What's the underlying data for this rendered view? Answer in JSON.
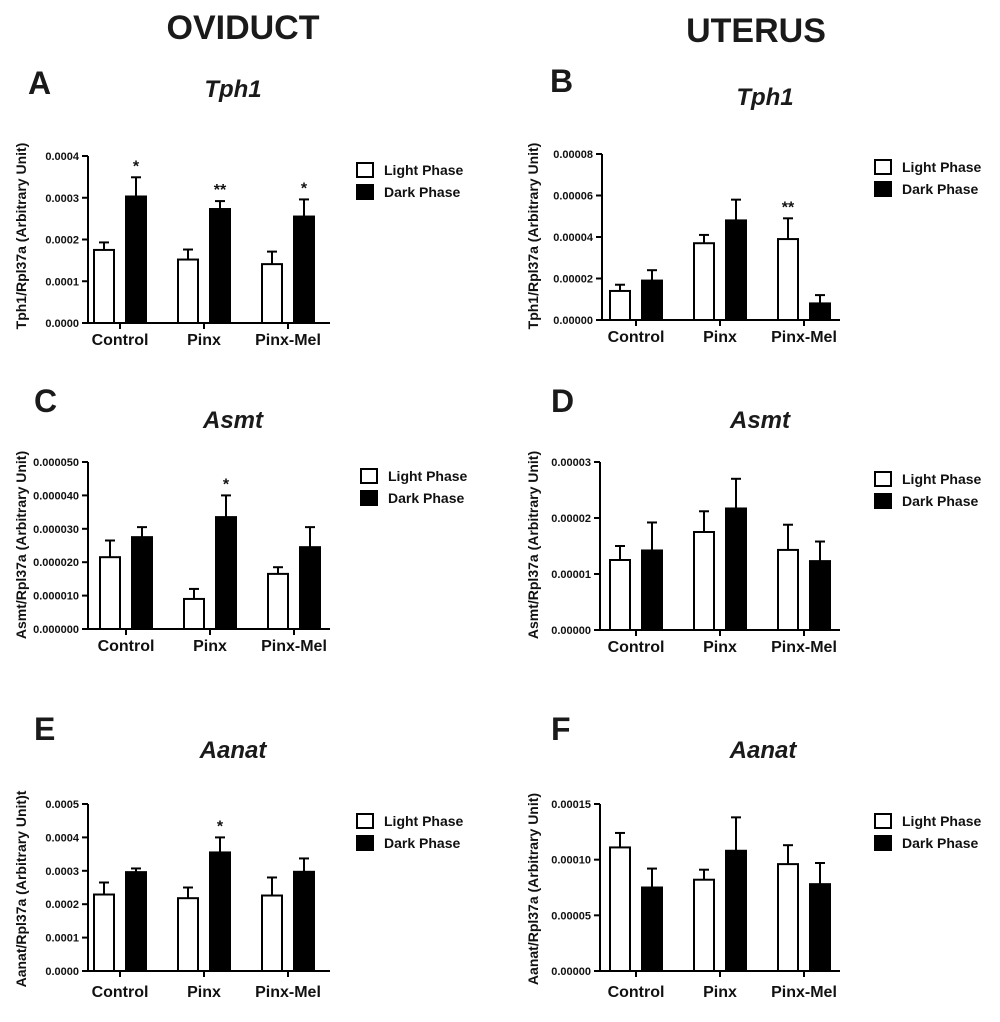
{
  "titles": {
    "left": "OVIDUCT",
    "right": "UTERUS"
  },
  "legend": {
    "light": "Light Phase",
    "dark": "Dark Phase"
  },
  "chart_data": [
    {
      "panel": "A",
      "type": "bar",
      "title": "Tph1",
      "ylabel": "Tph1/Rpl37a (Arbitrary Unit)",
      "categories": [
        "Control",
        "Pinx",
        "Pinx-Mel"
      ],
      "ylim": [
        0,
        0.0004
      ],
      "yticks": [
        "0.0000",
        "0.0001",
        "0.0002",
        "0.0003",
        "0.0004"
      ],
      "series": [
        {
          "name": "Light Phase",
          "values": [
            0.000175,
            0.000152,
            0.000141
          ],
          "errors": [
            1.8e-05,
            2.4e-05,
            3e-05
          ]
        },
        {
          "name": "Dark Phase",
          "values": [
            0.000303,
            0.000273,
            0.000255
          ],
          "errors": [
            4.6e-05,
            1.9e-05,
            4.1e-05
          ]
        }
      ],
      "annotations": [
        {
          "category": 0,
          "series": 1,
          "text": "*"
        },
        {
          "category": 1,
          "series": 1,
          "text": "**"
        },
        {
          "category": 2,
          "series": 1,
          "text": "*"
        }
      ]
    },
    {
      "panel": "B",
      "type": "bar",
      "title": "Tph1",
      "ylabel": "Tph1/Rpl37a (Arbitrary Unit)",
      "categories": [
        "Control",
        "Pinx",
        "Pinx-Mel"
      ],
      "ylim": [
        0,
        8e-05
      ],
      "yticks": [
        "0.00000",
        "0.00002",
        "0.00004",
        "0.00006",
        "0.00008"
      ],
      "series": [
        {
          "name": "Light Phase",
          "values": [
            1.4e-05,
            3.7e-05,
            3.9e-05
          ],
          "errors": [
            3e-06,
            4e-06,
            1e-05
          ]
        },
        {
          "name": "Dark Phase",
          "values": [
            1.9e-05,
            4.8e-05,
            8e-06
          ],
          "errors": [
            5e-06,
            1e-05,
            4e-06
          ]
        }
      ],
      "annotations": [
        {
          "category": 2,
          "series": 0,
          "text": "**"
        }
      ]
    },
    {
      "panel": "C",
      "type": "bar",
      "title": "Asmt",
      "ylabel": "Asmt/Rpl37a (Arbitrary Unit)",
      "categories": [
        "Control",
        "Pinx",
        "Pinx-Mel"
      ],
      "ylim": [
        0,
        5e-05
      ],
      "yticks": [
        "0.000000",
        "0.000010",
        "0.000020",
        "0.000030",
        "0.000040",
        "0.000050"
      ],
      "series": [
        {
          "name": "Light Phase",
          "values": [
            2.15e-05,
            9e-06,
            1.65e-05
          ],
          "errors": [
            5e-06,
            3e-06,
            2e-06
          ]
        },
        {
          "name": "Dark Phase",
          "values": [
            2.75e-05,
            3.35e-05,
            2.45e-05
          ],
          "errors": [
            3e-06,
            6.5e-06,
            6e-06
          ]
        }
      ],
      "annotations": [
        {
          "category": 1,
          "series": 1,
          "text": "*"
        }
      ]
    },
    {
      "panel": "D",
      "type": "bar",
      "title": "Asmt",
      "ylabel": "Asmt/Rpl37a (Arbitrary Unit)",
      "categories": [
        "Control",
        "Pinx",
        "Pinx-Mel"
      ],
      "ylim": [
        0,
        3e-05
      ],
      "yticks": [
        "0.00000",
        "0.00001",
        "0.00002",
        "0.00003"
      ],
      "series": [
        {
          "name": "Light Phase",
          "values": [
            1.25e-05,
            1.75e-05,
            1.43e-05
          ],
          "errors": [
            2.5e-06,
            3.7e-06,
            4.5e-06
          ]
        },
        {
          "name": "Dark Phase",
          "values": [
            1.42e-05,
            2.17e-05,
            1.23e-05
          ],
          "errors": [
            5e-06,
            5.3e-06,
            3.5e-06
          ]
        }
      ],
      "annotations": []
    },
    {
      "panel": "E",
      "type": "bar",
      "title": "Aanat",
      "ylabel": "Aanat/Rpl37a (Arbitrary Unit)t",
      "categories": [
        "Control",
        "Pinx",
        "Pinx-Mel"
      ],
      "ylim": [
        0,
        0.0005
      ],
      "yticks": [
        "0.0000",
        "0.0001",
        "0.0002",
        "0.0003",
        "0.0004",
        "0.0005"
      ],
      "series": [
        {
          "name": "Light Phase",
          "values": [
            0.000229,
            0.000218,
            0.000226
          ],
          "errors": [
            3.6e-05,
            3.2e-05,
            5.4e-05
          ]
        },
        {
          "name": "Dark Phase",
          "values": [
            0.000296,
            0.000355,
            0.000297
          ],
          "errors": [
            1.1e-05,
            4.5e-05,
            4e-05
          ]
        }
      ],
      "annotations": [
        {
          "category": 1,
          "series": 1,
          "text": "*"
        }
      ]
    },
    {
      "panel": "F",
      "type": "bar",
      "title": "Aanat",
      "ylabel": "Aanat/Rpl37a (Arbitrary Unit)",
      "categories": [
        "Control",
        "Pinx",
        "Pinx-Mel"
      ],
      "ylim": [
        0,
        0.00015
      ],
      "yticks": [
        "0.00000",
        "0.00005",
        "0.00010",
        "0.00015"
      ],
      "series": [
        {
          "name": "Light Phase",
          "values": [
            0.000111,
            8.2e-05,
            9.6e-05
          ],
          "errors": [
            1.3e-05,
            9e-06,
            1.7e-05
          ]
        },
        {
          "name": "Dark Phase",
          "values": [
            7.5e-05,
            0.000108,
            7.8e-05
          ],
          "errors": [
            1.7e-05,
            3e-05,
            1.9e-05
          ]
        }
      ],
      "annotations": []
    }
  ]
}
